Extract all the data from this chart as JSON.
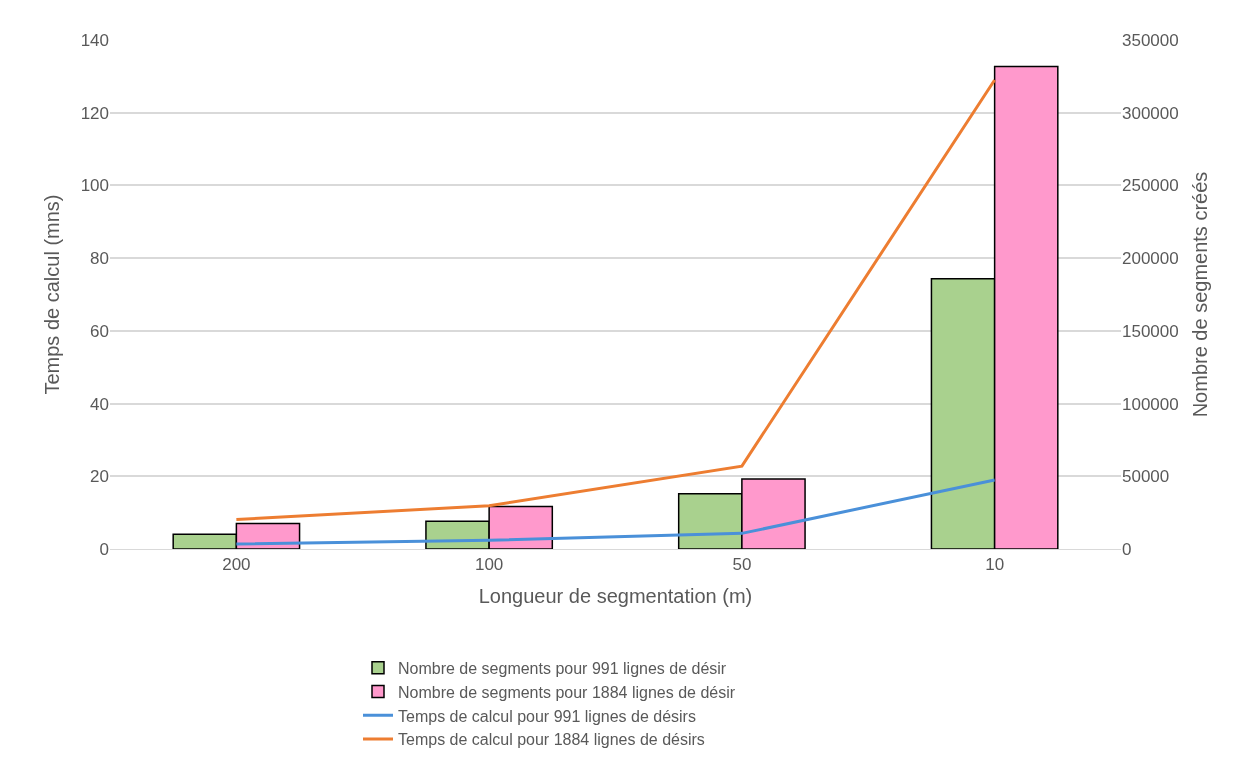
{
  "chart_data": {
    "type": "bar",
    "xlabel": "Longueur de segmentation (m)",
    "ylabel": "Temps de calcul (mns)",
    "y2label": "Nombre de segments créés",
    "categories": [
      "200",
      "100",
      "50",
      "10"
    ],
    "series": [
      {
        "name": "Nombre de segments pour 991 lignes de désir",
        "axis": "y2",
        "color": "#a9d18e",
        "values": [
          10200,
          19000,
          38000,
          185900
        ]
      },
      {
        "name": "Nombre de segments pour 1884 lignes de désir",
        "axis": "y2",
        "color": "#ff99cc",
        "values": [
          17600,
          29200,
          48200,
          331700
        ]
      },
      {
        "name": "Temps de calcul pour 991 lignes de désirs",
        "type": "line",
        "axis": "y",
        "color": "#4a90d9",
        "values": [
          1.4,
          2.4,
          4.3,
          19.0
        ]
      },
      {
        "name": "Temps de calcul pour 1884 lignes de désirs",
        "type": "line",
        "axis": "y",
        "color": "#ed7d31",
        "values": [
          8.1,
          11.9,
          22.8,
          129
        ]
      }
    ],
    "ylim": [
      0,
      140
    ],
    "yticks": [
      0,
      20,
      40,
      60,
      80,
      100,
      120,
      140
    ],
    "y2lim": [
      0,
      350000
    ],
    "y2ticks": [
      0,
      50000,
      100000,
      150000,
      200000,
      250000,
      300000,
      350000
    ],
    "grid": "y",
    "legend": "bottom",
    "marker": "none",
    "line_style": "solid"
  }
}
